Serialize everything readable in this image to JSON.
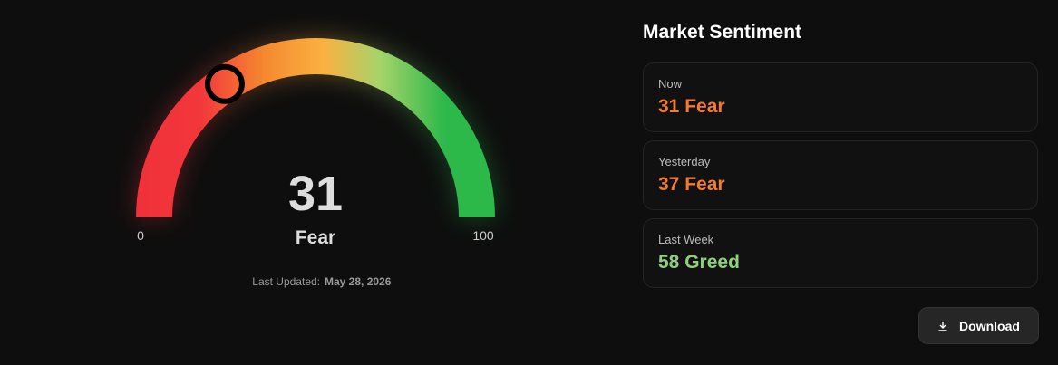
{
  "gauge": {
    "value": 31,
    "label": "Fear",
    "min": 0,
    "max": 100,
    "last_updated_label": "Last Updated:",
    "last_updated": "May 28, 2026"
  },
  "panel": {
    "title": "Market Sentiment",
    "items": [
      {
        "label": "Now",
        "value": 31,
        "sentiment": "Fear",
        "color": "#f47a30"
      },
      {
        "label": "Yesterday",
        "value": 37,
        "sentiment": "Fear",
        "color": "#f47a30"
      },
      {
        "label": "Last Week",
        "value": 58,
        "sentiment": "Greed",
        "color": "#8fd17a"
      }
    ],
    "download": "Download"
  }
}
